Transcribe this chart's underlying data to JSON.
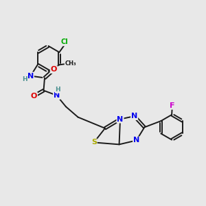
{
  "bg_color": "#e8e8e8",
  "bond_color": "#1a1a1a",
  "bond_width": 1.4,
  "atom_colors": {
    "C": "#1a1a1a",
    "N": "#0000ee",
    "O": "#dd0000",
    "S": "#aaaa00",
    "Cl": "#00aa00",
    "F": "#cc00cc",
    "H": "#4a9090"
  }
}
